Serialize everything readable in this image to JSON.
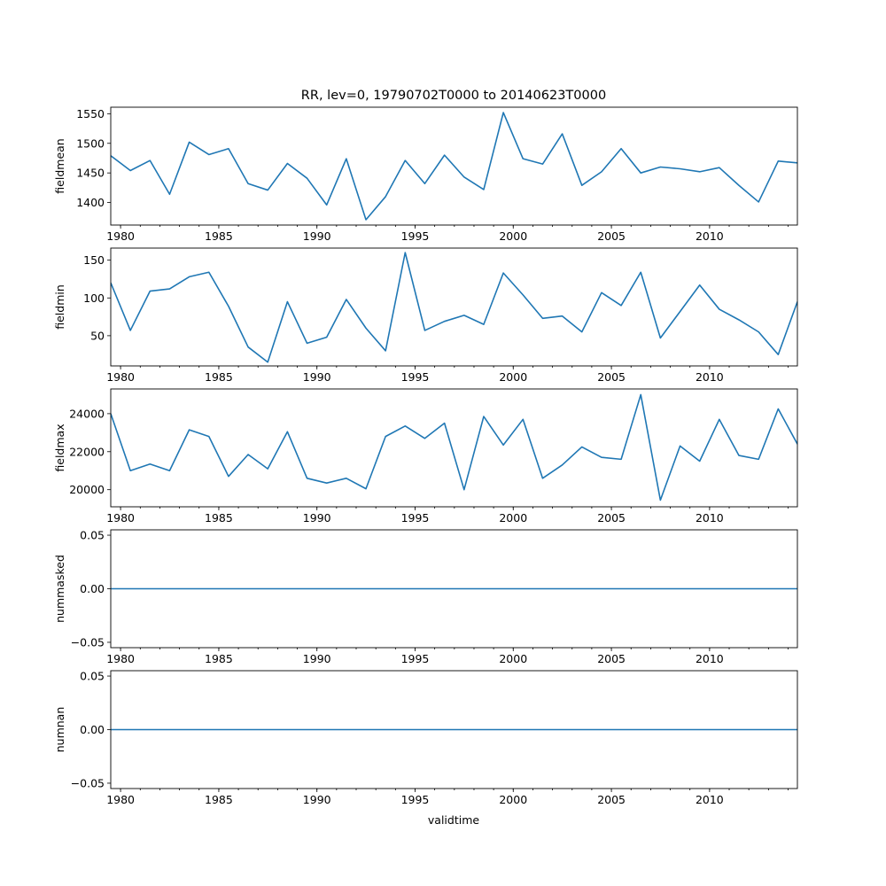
{
  "title": "RR, lev=0, 19790702T0000 to 20140623T0000",
  "xlabel": "validtime",
  "x_tick_labels": [
    "1980",
    "1985",
    "1990",
    "1995",
    "2000",
    "2005",
    "2010"
  ],
  "colors": {
    "line": "#1f77b4",
    "axes": "#000000",
    "background": "#ffffff"
  },
  "chart_data": [
    {
      "type": "line",
      "ylabel": "fieldmean",
      "xlim": [
        "1979-07-02",
        "2014-06-23"
      ],
      "ylim": [
        1362,
        1561
      ],
      "y_ticks": [
        1400,
        1450,
        1500,
        1550
      ],
      "y_tick_labels": [
        "1400",
        "1450",
        "1500",
        "1550"
      ],
      "x_tick_labels": [
        "1980",
        "1985",
        "1990",
        "1995",
        "2000",
        "2005",
        "2010"
      ],
      "grid": false,
      "series": [
        {
          "x": [
            "1979-07-02",
            "1980-07-01",
            "1981-07-01",
            "1982-07-01",
            "1983-07-01",
            "1984-07-01",
            "1985-07-01",
            "1986-07-01",
            "1987-07-01",
            "1988-07-01",
            "1989-07-01",
            "1990-07-01",
            "1991-07-01",
            "1992-07-01",
            "1993-07-01",
            "1994-07-01",
            "1995-07-01",
            "1996-07-01",
            "1997-07-01",
            "1998-07-01",
            "1999-07-01",
            "2000-07-01",
            "2001-07-01",
            "2002-07-01",
            "2003-07-01",
            "2004-07-01",
            "2005-07-01",
            "2006-07-01",
            "2007-07-01",
            "2008-07-01",
            "2009-07-01",
            "2010-07-01",
            "2011-07-01",
            "2012-07-01",
            "2013-07-01",
            "2014-06-23"
          ],
          "values": [
            1479,
            1454,
            1471,
            1414,
            1502,
            1481,
            1491,
            1432,
            1421,
            1466,
            1441,
            1396,
            1474,
            1371,
            1410,
            1471,
            1432,
            1480,
            1443,
            1422,
            1552,
            1474,
            1465,
            1516,
            1429,
            1452,
            1491,
            1450,
            1460,
            1457,
            1452,
            1459,
            1429,
            1401,
            1470,
            1467
          ]
        }
      ]
    },
    {
      "type": "line",
      "ylabel": "fieldmin",
      "xlim": [
        "1979-07-02",
        "2014-06-23"
      ],
      "ylim": [
        10,
        166
      ],
      "y_ticks": [
        50,
        100,
        150
      ],
      "y_tick_labels": [
        "50",
        "100",
        "150"
      ],
      "x_tick_labels": [
        "1980",
        "1985",
        "1990",
        "1995",
        "2000",
        "2005",
        "2010"
      ],
      "grid": false,
      "series": [
        {
          "x": [
            "1979-07-02",
            "1980-07-01",
            "1981-07-01",
            "1982-07-01",
            "1983-07-01",
            "1984-07-01",
            "1985-07-01",
            "1986-07-01",
            "1987-07-01",
            "1988-07-01",
            "1989-07-01",
            "1990-07-01",
            "1991-07-01",
            "1992-07-01",
            "1993-07-01",
            "1994-07-01",
            "1995-07-01",
            "1996-07-01",
            "1997-07-01",
            "1998-07-01",
            "1999-07-01",
            "2000-07-01",
            "2001-07-01",
            "2002-07-01",
            "2003-07-01",
            "2004-07-01",
            "2005-07-01",
            "2006-07-01",
            "2007-07-01",
            "2008-07-01",
            "2009-07-01",
            "2010-07-01",
            "2011-07-01",
            "2012-07-01",
            "2013-07-01",
            "2014-06-23"
          ],
          "values": [
            120,
            57,
            109,
            112,
            128,
            134,
            89,
            35,
            15,
            95,
            40,
            48,
            98,
            60,
            30,
            160,
            57,
            69,
            77,
            65,
            133,
            104,
            73,
            76,
            55,
            107,
            90,
            134,
            47,
            82,
            117,
            85,
            71,
            55,
            25,
            95
          ]
        }
      ]
    },
    {
      "type": "line",
      "ylabel": "fieldmax",
      "xlim": [
        "1979-07-02",
        "2014-06-23"
      ],
      "ylim": [
        19100,
        25300
      ],
      "y_ticks": [
        20000,
        22000,
        24000
      ],
      "y_tick_labels": [
        "20000",
        "22000",
        "24000"
      ],
      "x_tick_labels": [
        "1980",
        "1985",
        "1990",
        "1995",
        "2000",
        "2005",
        "2010"
      ],
      "grid": false,
      "series": [
        {
          "x": [
            "1979-07-02",
            "1980-07-01",
            "1981-07-01",
            "1982-07-01",
            "1983-07-01",
            "1984-07-01",
            "1985-07-01",
            "1986-07-01",
            "1987-07-01",
            "1988-07-01",
            "1989-07-01",
            "1990-07-01",
            "1991-07-01",
            "1992-07-01",
            "1993-07-01",
            "1994-07-01",
            "1995-07-01",
            "1996-07-01",
            "1997-07-01",
            "1998-07-01",
            "1999-07-01",
            "2000-07-01",
            "2001-07-01",
            "2002-07-01",
            "2003-07-01",
            "2004-07-01",
            "2005-07-01",
            "2006-07-01",
            "2007-07-01",
            "2008-07-01",
            "2009-07-01",
            "2010-07-01",
            "2011-07-01",
            "2012-07-01",
            "2013-07-01",
            "2014-06-23"
          ],
          "values": [
            24000,
            21000,
            21350,
            21000,
            23150,
            22800,
            20700,
            21850,
            21100,
            23050,
            20600,
            20350,
            20600,
            20050,
            22800,
            23350,
            22700,
            23500,
            20000,
            23850,
            22350,
            23700,
            20600,
            21300,
            22250,
            21700,
            21600,
            25000,
            19450,
            22300,
            21500,
            23700,
            21800,
            21600,
            24250,
            22400
          ]
        }
      ]
    },
    {
      "type": "line",
      "ylabel": "nummasked",
      "xlim": [
        "1979-07-02",
        "2014-06-23"
      ],
      "ylim": [
        -0.055,
        0.055
      ],
      "y_ticks": [
        -0.05,
        0,
        0.05
      ],
      "y_tick_labels": [
        "−0.05",
        "0.00",
        "0.05"
      ],
      "x_tick_labels": [
        "1980",
        "1985",
        "1990",
        "1995",
        "2000",
        "2005",
        "2010"
      ],
      "grid": false,
      "series": [
        {
          "x": [
            "1979-07-02",
            "2014-06-23"
          ],
          "values": [
            0,
            0
          ]
        }
      ]
    },
    {
      "type": "line",
      "ylabel": "numnan",
      "xlim": [
        "1979-07-02",
        "2014-06-23"
      ],
      "ylim": [
        -0.055,
        0.055
      ],
      "y_ticks": [
        -0.05,
        0,
        0.05
      ],
      "y_tick_labels": [
        "−0.05",
        "0.00",
        "0.05"
      ],
      "x_tick_labels": [
        "1980",
        "1985",
        "1990",
        "1995",
        "2000",
        "2005",
        "2010"
      ],
      "grid": false,
      "series": [
        {
          "x": [
            "1979-07-02",
            "2014-06-23"
          ],
          "values": [
            0,
            0
          ]
        }
      ]
    }
  ]
}
